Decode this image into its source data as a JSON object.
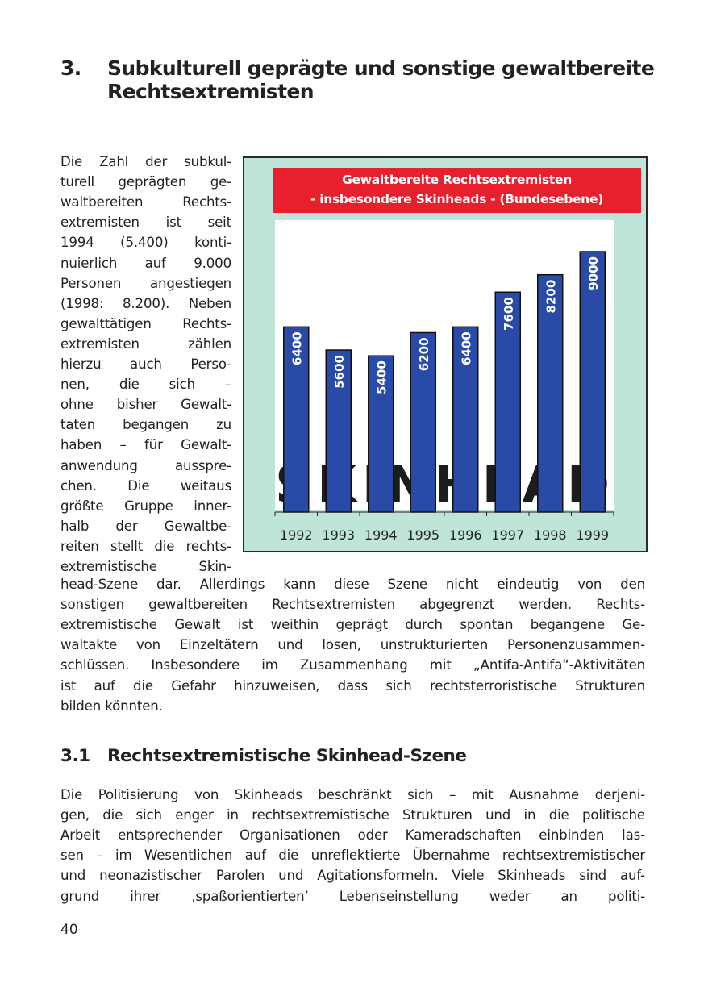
{
  "heading": {
    "number": "3.",
    "title": "Subkulturell geprägte und sonstige gewaltbereite Rechtsextremisten"
  },
  "intro_left_lines": [
    "Die Zahl der subkul-",
    "turell geprägten ge-",
    "waltbereiten Rechts-",
    "extremisten ist seit",
    "1994 (5.400) konti-",
    "nuierlich auf 9.000",
    "Personen angestiegen",
    "(1998: 8.200). Neben",
    "gewalttätigen Rechts-",
    "extremisten zählen",
    "hierzu auch Perso-",
    "nen, die sich –",
    "ohne bisher Gewalt-",
    "taten begangen zu",
    "haben – für Gewalt-",
    "anwendung ausspre-",
    "chen. Die weitaus",
    "größte Gruppe inner-",
    "halb der Gewaltbe-",
    "reiten stellt die rechts-",
    "extremistische Skin-"
  ],
  "intro_full_lines": [
    "head-Szene dar. Allerdings kann diese Szene nicht eindeutig von den",
    "sonstigen gewaltbereiten Rechtsextremisten abgegrenzt werden. Rechts-",
    "extremistische Gewalt ist weithin geprägt durch spontan begangene Ge-",
    "waltakte von Einzeltätern und losen, unstrukturierten Personenzusammen-",
    "schlüssen. Insbesondere im Zusammenhang mit „Antifa-Antifa“-Aktivitäten",
    "ist auf die Gefahr hinzuweisen, dass sich rechtsterroristische Strukturen",
    "bilden könnten."
  ],
  "subheading": {
    "number": "3.1",
    "title": "Rechtsextremistische Skinhead-Szene"
  },
  "section_lines": [
    "Die Politisierung von Skinheads beschränkt sich – mit Ausnahme derjeni-",
    "gen, die sich enger in rechtsextremistische Strukturen und in die politische",
    "Arbeit entsprechender Organisationen oder Kameradschaften einbinden las-",
    "sen – im Wesentlichen auf die unreflektierte Übernahme rechtsextremistischer",
    "und neonazistischer Parolen und Agitationsformeln. Viele Skinheads sind auf-",
    "grund ihrer ‚spaßorientierten’ Lebenseinstellung weder an politi-"
  ],
  "page_number": "40",
  "chart_data": {
    "type": "bar",
    "title_line1": "Gewaltbereite Rechtsextremisten",
    "title_line2": "- insbesondere Skinheads - (Bundesebene)",
    "categories": [
      "1992",
      "1993",
      "1994",
      "1995",
      "1996",
      "1997",
      "1998",
      "1999"
    ],
    "values": [
      6400,
      5600,
      5400,
      6200,
      6400,
      7600,
      8200,
      9000
    ],
    "data_labels": [
      "6400",
      "5600",
      "5400",
      "6200",
      "6400",
      "7600",
      "8200",
      "9000"
    ],
    "ylim": [
      0,
      9000
    ],
    "grid": false,
    "legend": "none",
    "background_image_text": "SKINHEADS",
    "colors": {
      "bar": "#2a4aa8",
      "title_bg": "#e8202e",
      "panel_bg": "#bfe5da"
    }
  }
}
